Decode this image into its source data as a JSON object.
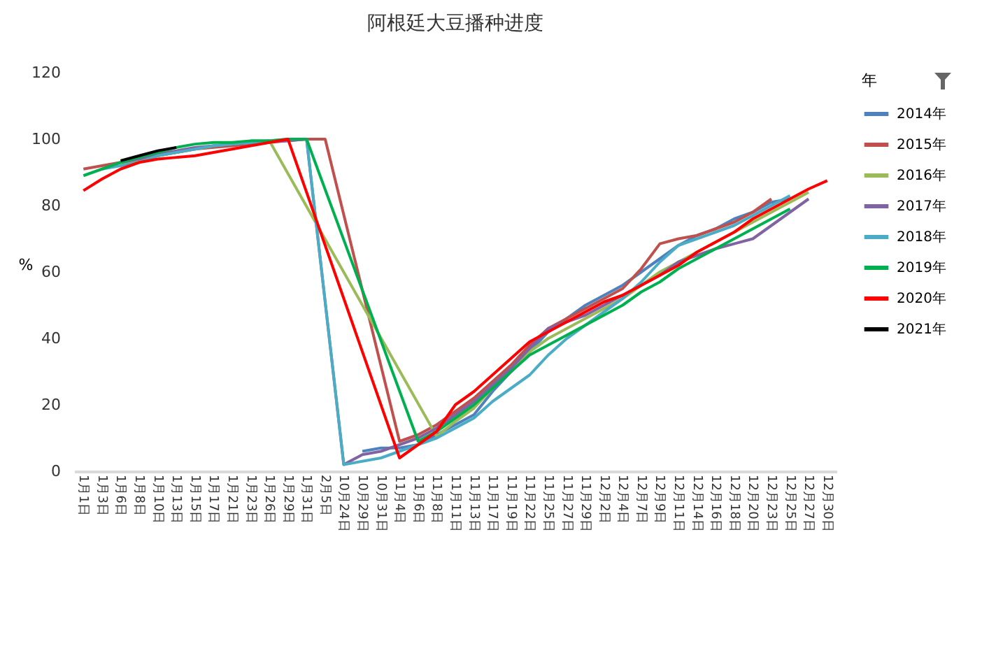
{
  "chart_data": {
    "type": "line",
    "title": "阿根廷大豆播种进度",
    "ylabel": "%",
    "legend_title": "年",
    "legend": "right",
    "categories": [
      "1月1日",
      "1月3日",
      "1月6日",
      "1月8日",
      "1月10日",
      "1月13日",
      "1月15日",
      "1月17日",
      "1月21日",
      "1月23日",
      "1月26日",
      "1月29日",
      "1月31日",
      "2月5日",
      "10月24日",
      "10月29日",
      "10月31日",
      "11月4日",
      "11月6日",
      "11月8日",
      "11月11日",
      "11月13日",
      "11月17日",
      "11月19日",
      "11月22日",
      "11月25日",
      "11月27日",
      "11月29日",
      "12月2日",
      "12月4日",
      "12月7日",
      "12月9日",
      "12月11日",
      "12月14日",
      "12月16日",
      "12月18日",
      "12月20日",
      "12月23日",
      "12月25日",
      "12月27日",
      "12月30日"
    ],
    "ylim": [
      0,
      120
    ],
    "yticks": [
      0,
      20,
      40,
      60,
      80,
      100,
      120
    ],
    "series": [
      {
        "name": "2014年",
        "color": "#4f81bd",
        "values": [
          null,
          null,
          null,
          null,
          null,
          null,
          null,
          null,
          null,
          null,
          null,
          null,
          null,
          null,
          null,
          6,
          7,
          7,
          8,
          11,
          14,
          17,
          24,
          30,
          36,
          42,
          46,
          50,
          53,
          56,
          60,
          64,
          68,
          71,
          73,
          76,
          78,
          81,
          82,
          null,
          null
        ]
      },
      {
        "name": "2015年",
        "color": "#c0504d",
        "values": [
          91,
          92,
          93,
          94,
          95,
          96,
          97,
          97.5,
          98,
          98.5,
          99,
          99.5,
          100,
          100,
          null,
          null,
          null,
          9,
          11,
          14,
          18,
          22,
          27,
          32,
          38,
          43,
          46,
          49,
          52,
          55,
          61,
          68.5,
          70,
          71,
          73,
          75,
          78,
          82,
          null,
          null,
          null
        ]
      },
      {
        "name": "2016年",
        "color": "#9bbb59",
        "values": [
          null,
          null,
          92,
          94,
          95,
          96,
          97,
          98,
          98.5,
          99,
          99.5,
          null,
          null,
          null,
          null,
          null,
          null,
          null,
          null,
          10.5,
          15,
          19,
          25,
          31,
          36,
          40,
          43,
          46,
          49,
          52,
          56,
          60,
          63,
          66,
          69,
          72,
          75,
          78,
          81,
          84,
          null
        ]
      },
      {
        "name": "2017年",
        "color": "#8064a2",
        "values": [
          null,
          null,
          93,
          94,
          95.5,
          96.5,
          97.5,
          98,
          98.5,
          99,
          null,
          99.5,
          100,
          null,
          2,
          5,
          6,
          8,
          10,
          13,
          17,
          21,
          26,
          31,
          37,
          43,
          45,
          47,
          50,
          53,
          56,
          59,
          63,
          65,
          67,
          68.5,
          70,
          74,
          78,
          82,
          null
        ]
      },
      {
        "name": "2018年",
        "color": "#4bacc6",
        "values": [
          null,
          91,
          92,
          93,
          95,
          96,
          97,
          98,
          98.5,
          99,
          99.5,
          100,
          100,
          null,
          2,
          3,
          4,
          6,
          8,
          10,
          13,
          16,
          21,
          25,
          29,
          35,
          40,
          44,
          48,
          52,
          57,
          63,
          68,
          70,
          72,
          74,
          77,
          80,
          83,
          null,
          null
        ]
      },
      {
        "name": "2019年",
        "color": "#00b050",
        "values": [
          89,
          91,
          93,
          94.5,
          96,
          97.5,
          98.5,
          99,
          99,
          99.5,
          99.5,
          100,
          100,
          null,
          null,
          null,
          null,
          null,
          9,
          12,
          16,
          20,
          25,
          30,
          35,
          38,
          41,
          44,
          47,
          50,
          54,
          57,
          61,
          64,
          67,
          70,
          73,
          76,
          79,
          null,
          null
        ]
      },
      {
        "name": "2020年",
        "color": "#ff0000",
        "values": [
          84.5,
          88,
          91,
          93,
          94,
          94.5,
          95,
          96,
          97,
          98,
          99,
          100,
          null,
          null,
          null,
          null,
          null,
          4,
          8,
          12,
          20,
          24,
          29,
          34,
          39,
          42,
          45,
          48,
          51,
          53,
          56,
          59,
          62,
          66,
          69,
          72,
          76,
          79,
          82,
          85,
          87.5
        ]
      },
      {
        "name": "2021年",
        "color": "#000000",
        "values": [
          null,
          null,
          93.5,
          95,
          96.5,
          97.5,
          null,
          null,
          null,
          null,
          null,
          null,
          null,
          null,
          null,
          null,
          null,
          null,
          null,
          null,
          null,
          null,
          null,
          null,
          null,
          null,
          null,
          null,
          null,
          null,
          null,
          null,
          null,
          null,
          null,
          null,
          null,
          null,
          null,
          null,
          null
        ]
      }
    ]
  }
}
